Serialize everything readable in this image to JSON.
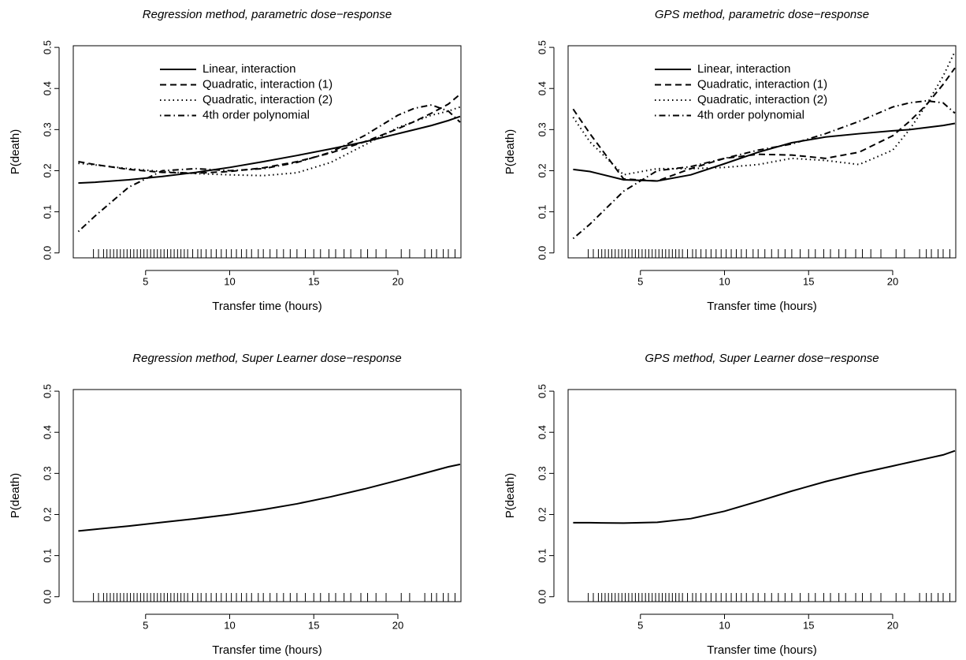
{
  "chart_data": [
    {
      "type": "line",
      "title": "Regression method, parametric dose−response",
      "xlabel": "Transfer time (hours)",
      "ylabel": "P(death)",
      "x": [
        1,
        2,
        4,
        6,
        8,
        10,
        12,
        14,
        16,
        18,
        20,
        21,
        22,
        23,
        23.7
      ],
      "series": [
        {
          "name": "Linear, interaction",
          "color": "#000000",
          "line_style": "solid",
          "values": [
            0.17,
            0.172,
            0.178,
            0.186,
            0.196,
            0.208,
            0.222,
            0.237,
            0.253,
            0.27,
            0.29,
            0.3,
            0.31,
            0.322,
            0.332
          ]
        },
        {
          "name": "Quadratic, interaction (1)",
          "color": "#000000",
          "line_style": "dashed",
          "values": [
            0.222,
            0.215,
            0.203,
            0.196,
            0.194,
            0.198,
            0.207,
            0.222,
            0.243,
            0.27,
            0.302,
            0.32,
            0.34,
            0.362,
            0.386
          ]
        },
        {
          "name": "Quadratic, interaction (2)",
          "color": "#000000",
          "line_style": "dotted",
          "values": [
            0.218,
            0.214,
            0.205,
            0.198,
            0.193,
            0.19,
            0.188,
            0.195,
            0.22,
            0.262,
            0.305,
            0.32,
            0.335,
            0.345,
            0.355
          ]
        },
        {
          "name": "4th order polynomial",
          "color": "#000000",
          "line_style": "dotdash",
          "values": [
            0.052,
            0.09,
            0.16,
            0.2,
            0.205,
            0.2,
            0.205,
            0.22,
            0.245,
            0.285,
            0.335,
            0.352,
            0.36,
            0.345,
            0.318
          ]
        }
      ],
      "rug": [
        1.9,
        2.2,
        2.5,
        2.7,
        2.9,
        3.1,
        3.3,
        3.5,
        3.7,
        3.9,
        4.1,
        4.3,
        4.5,
        4.7,
        4.9,
        5.1,
        5.3,
        5.5,
        5.7,
        5.9,
        6.1,
        6.3,
        6.5,
        6.7,
        6.9,
        7.1,
        7.3,
        7.5,
        7.8,
        8.1,
        8.3,
        8.6,
        8.9,
        9.2,
        9.5,
        9.8,
        10.1,
        10.4,
        10.7,
        11,
        11.3,
        11.7,
        12,
        12.4,
        12.8,
        13.2,
        13.6,
        14,
        14.5,
        15,
        15.4,
        15.9,
        16.3,
        16.8,
        17.2,
        17.8,
        18.2,
        18.7,
        19.3,
        20.2,
        20.7,
        21.6,
        22,
        22.3,
        22.7,
        23,
        23.4
      ],
      "xlim": [
        0.7,
        23.75
      ],
      "ylim": [
        -0.012,
        0.504
      ],
      "xticks": [
        5,
        10,
        15,
        20
      ],
      "yticks": [
        {
          "value": 0,
          "label": "0.0"
        },
        0.1,
        0.2,
        0.3,
        0.4,
        0.5
      ],
      "legend_position": "top"
    },
    {
      "type": "line",
      "title": "GPS method, parametric dose−response",
      "xlabel": "Transfer time (hours)",
      "ylabel": "P(death)",
      "x": [
        1,
        2,
        4,
        6,
        8,
        10,
        12,
        14,
        16,
        18,
        20,
        21,
        22,
        23,
        23.7
      ],
      "series": [
        {
          "name": "Linear, interaction",
          "color": "#000000",
          "line_style": "solid",
          "values": [
            0.203,
            0.198,
            0.178,
            0.175,
            0.19,
            0.217,
            0.245,
            0.268,
            0.282,
            0.29,
            0.297,
            0.3,
            0.305,
            0.31,
            0.315
          ]
        },
        {
          "name": "Quadratic, interaction (1)",
          "color": "#000000",
          "line_style": "dashed",
          "values": [
            0.35,
            0.29,
            0.18,
            0.175,
            0.205,
            0.23,
            0.24,
            0.238,
            0.23,
            0.245,
            0.285,
            0.32,
            0.36,
            0.41,
            0.45
          ]
        },
        {
          "name": "Quadratic, interaction (2)",
          "color": "#000000",
          "line_style": "dotted",
          "values": [
            0.33,
            0.27,
            0.19,
            0.205,
            0.205,
            0.208,
            0.215,
            0.23,
            0.225,
            0.215,
            0.25,
            0.3,
            0.36,
            0.43,
            0.49
          ]
        },
        {
          "name": "4th order polynomial",
          "color": "#000000",
          "line_style": "dotdash",
          "values": [
            0.035,
            0.07,
            0.15,
            0.2,
            0.21,
            0.23,
            0.25,
            0.265,
            0.29,
            0.32,
            0.355,
            0.365,
            0.37,
            0.365,
            0.34
          ]
        }
      ],
      "rug": [
        1.9,
        2.2,
        2.5,
        2.7,
        2.9,
        3.1,
        3.3,
        3.5,
        3.7,
        3.9,
        4.1,
        4.3,
        4.5,
        4.7,
        4.9,
        5.1,
        5.3,
        5.5,
        5.7,
        5.9,
        6.1,
        6.3,
        6.5,
        6.7,
        6.9,
        7.1,
        7.3,
        7.5,
        7.8,
        8.1,
        8.3,
        8.6,
        8.9,
        9.2,
        9.5,
        9.8,
        10.1,
        10.4,
        10.7,
        11,
        11.3,
        11.7,
        12,
        12.4,
        12.8,
        13.2,
        13.6,
        14,
        14.5,
        15,
        15.4,
        15.9,
        16.3,
        16.8,
        17.2,
        17.8,
        18.2,
        18.7,
        19.3,
        20.2,
        20.7,
        21.6,
        22,
        22.3,
        22.7,
        23,
        23.4
      ],
      "xlim": [
        0.7,
        23.75
      ],
      "ylim": [
        -0.012,
        0.504
      ],
      "xticks": [
        5,
        10,
        15,
        20
      ],
      "yticks": [
        {
          "value": 0,
          "label": "0.0"
        },
        0.1,
        0.2,
        0.3,
        0.4,
        0.5
      ],
      "legend_position": "top"
    },
    {
      "type": "line",
      "title": "Regression method, Super Learner dose−response",
      "xlabel": "Transfer time (hours)",
      "ylabel": "P(death)",
      "x": [
        1,
        2,
        4,
        6,
        8,
        10,
        12,
        14,
        16,
        18,
        20,
        21,
        22,
        23,
        23.7
      ],
      "color": "#000000",
      "line_style": "solid",
      "values": [
        0.16,
        0.164,
        0.172,
        0.181,
        0.19,
        0.2,
        0.212,
        0.226,
        0.243,
        0.262,
        0.283,
        0.294,
        0.305,
        0.316,
        0.322
      ],
      "rug": [
        1.9,
        2.2,
        2.5,
        2.7,
        2.9,
        3.1,
        3.3,
        3.5,
        3.7,
        3.9,
        4.1,
        4.3,
        4.5,
        4.7,
        4.9,
        5.1,
        5.3,
        5.5,
        5.7,
        5.9,
        6.1,
        6.3,
        6.5,
        6.7,
        6.9,
        7.1,
        7.3,
        7.5,
        7.8,
        8.1,
        8.3,
        8.6,
        8.9,
        9.2,
        9.5,
        9.8,
        10.1,
        10.4,
        10.7,
        11,
        11.3,
        11.7,
        12,
        12.4,
        12.8,
        13.2,
        13.6,
        14,
        14.5,
        15,
        15.4,
        15.9,
        16.3,
        16.8,
        17.2,
        17.8,
        18.2,
        18.7,
        19.3,
        20.2,
        20.7,
        21.6,
        22,
        22.3,
        22.7,
        23,
        23.4
      ],
      "xlim": [
        0.7,
        23.75
      ],
      "ylim": [
        -0.012,
        0.504
      ],
      "xticks": [
        5,
        10,
        15,
        20
      ],
      "yticks": [
        {
          "value": 0,
          "label": "0.0"
        },
        0.1,
        0.2,
        0.3,
        0.4,
        0.5
      ]
    },
    {
      "type": "line",
      "title": "GPS method, Super Learner dose−response",
      "xlabel": "Transfer time (hours)",
      "ylabel": "P(death)",
      "x": [
        1,
        2,
        4,
        6,
        8,
        10,
        12,
        14,
        16,
        18,
        20,
        21,
        22,
        23,
        23.7
      ],
      "color": "#000000",
      "line_style": "solid",
      "values": [
        0.18,
        0.18,
        0.179,
        0.181,
        0.19,
        0.208,
        0.232,
        0.257,
        0.28,
        0.3,
        0.318,
        0.327,
        0.336,
        0.345,
        0.355
      ],
      "rug": [
        1.9,
        2.2,
        2.5,
        2.7,
        2.9,
        3.1,
        3.3,
        3.5,
        3.7,
        3.9,
        4.1,
        4.3,
        4.5,
        4.7,
        4.9,
        5.1,
        5.3,
        5.5,
        5.7,
        5.9,
        6.1,
        6.3,
        6.5,
        6.7,
        6.9,
        7.1,
        7.3,
        7.5,
        7.8,
        8.1,
        8.3,
        8.6,
        8.9,
        9.2,
        9.5,
        9.8,
        10.1,
        10.4,
        10.7,
        11,
        11.3,
        11.7,
        12,
        12.4,
        12.8,
        13.2,
        13.6,
        14,
        14.5,
        15,
        15.4,
        15.9,
        16.3,
        16.8,
        17.2,
        17.8,
        18.2,
        18.7,
        19.3,
        20.2,
        20.7,
        21.6,
        22,
        22.3,
        22.7,
        23,
        23.4
      ],
      "xlim": [
        0.7,
        23.75
      ],
      "ylim": [
        -0.012,
        0.504
      ],
      "xticks": [
        5,
        10,
        15,
        20
      ],
      "yticks": [
        {
          "value": 0,
          "label": "0.0"
        },
        0.1,
        0.2,
        0.3,
        0.4,
        0.5
      ]
    }
  ]
}
